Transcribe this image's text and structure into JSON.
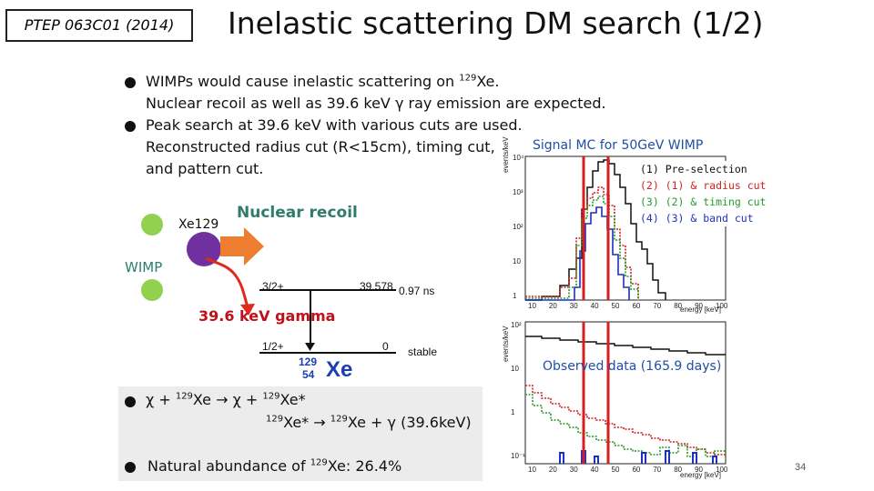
{
  "slide": {
    "reference": "PTEP 063C01 (2014)",
    "title": "Inelastic scattering DM search (1/2)",
    "page_number": "34"
  },
  "bullets": {
    "b1_pre": "WIMPs would cause inelastic scattering on ",
    "b1_sup": "129",
    "b1_post": "Xe.",
    "b1_line2": "Nuclear recoil as well as 39.6 keV γ ray emission are expected.",
    "b2_line1": "Peak search at 39.6 keV with various cuts are used.",
    "b2_line2": "Reconstructed radius cut (R<15cm), timing cut,",
    "b2_line3": "and pattern cut."
  },
  "diagram": {
    "xe_label": "Xe129",
    "nuclear_recoil": "Nuclear recoil",
    "wimp_label": "WIMP",
    "gamma_label": "39.6 keV gamma",
    "level_upper": "3/2+",
    "level_upper_energy": "39.578",
    "level_upper_time": "0.97 ns",
    "level_ground": "1/2+",
    "level_ground_energy": "0",
    "level_ground_state": "stable",
    "isotope_mass": "129",
    "isotope_z": "54",
    "isotope_symbol": "Xe"
  },
  "reaction": {
    "line1_a": "χ + ",
    "line1_sup1": "129",
    "line1_b": "Xe → χ + ",
    "line1_sup2": "129",
    "line1_c": "Xe*",
    "line2_sup1": "129",
    "line2_a": "Xe* → ",
    "line2_sup2": "129",
    "line2_b": "Xe + γ (39.6keV)",
    "abundance_pre": "Natural abundance of ",
    "abundance_sup": "129",
    "abundance_post": "Xe: 26.4%"
  },
  "plot_top": {
    "caption": "Signal MC for 50GeV WIMP",
    "ylabel": "events/keV",
    "xlabel": "energy [keV]",
    "y_ticks": [
      "10⁴",
      "10³",
      "10²",
      "10",
      "1"
    ],
    "x_ticks": [
      "10",
      "20",
      "30",
      "40",
      "50",
      "60",
      "70",
      "80",
      "90",
      "100"
    ],
    "legend": [
      {
        "num": "(1)",
        "text": "Pre-selection",
        "color": "#111111"
      },
      {
        "num": "(2)",
        "text": "(1) & radius cut",
        "color": "#d42020"
      },
      {
        "num": "(3)",
        "text": "(2) & timing cut",
        "color": "#2a9a2a"
      },
      {
        "num": "(4)",
        "text": "(3) & band cut",
        "color": "#1f2fbf"
      }
    ]
  },
  "plot_bottom": {
    "caption": "Observed data (165.9 days)",
    "ylabel": "events/keV",
    "xlabel": "energy [keV]",
    "y_ticks": [
      "10²",
      "10",
      "1",
      "10⁻¹"
    ],
    "x_ticks": [
      "10",
      "20",
      "30",
      "40",
      "50",
      "60",
      "70",
      "80",
      "90",
      "100"
    ]
  },
  "colors": {
    "accent_orange": "#ed7d31",
    "green_dot": "#92d050",
    "purple_xe": "#7030a0",
    "red_arrow": "#e0281c",
    "teal_text": "#2e7d6b"
  }
}
